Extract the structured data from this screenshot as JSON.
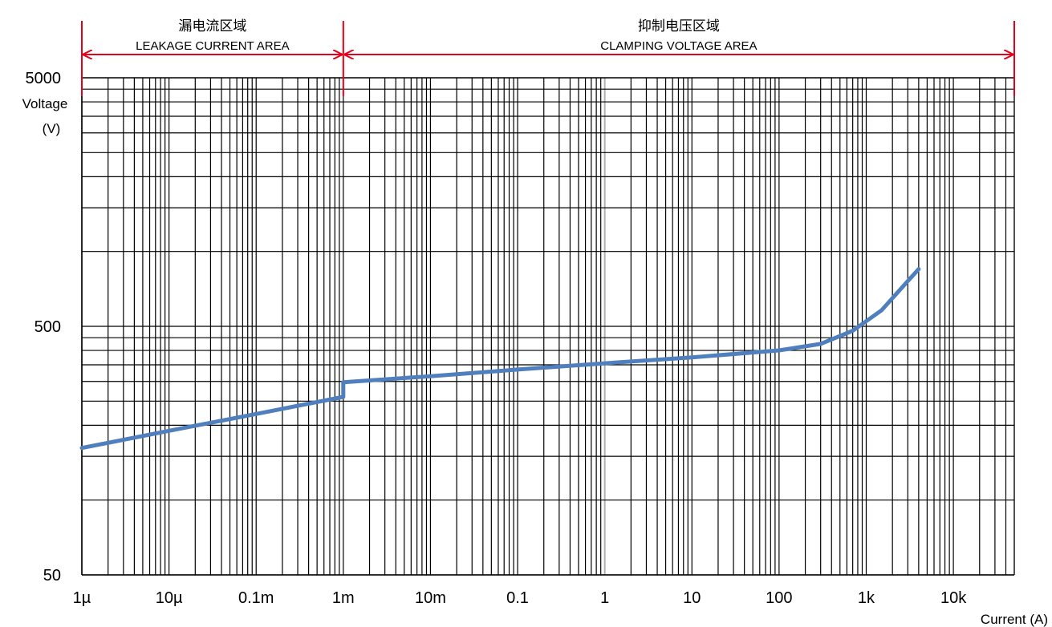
{
  "chart_data": {
    "type": "line",
    "x_scale": "log",
    "y_scale": "log",
    "xlim": [
      "1µ",
      "50k"
    ],
    "ylim": [
      50,
      5000
    ],
    "grid": true,
    "xlabel": "Current (A)",
    "ylabel": "Voltage (V)",
    "ylabel_lines": [
      "Voltage",
      "(V)"
    ],
    "x_ticks": [
      {
        "label": "1µ",
        "value": 1e-06
      },
      {
        "label": "10µ",
        "value": 1e-05
      },
      {
        "label": "0.1m",
        "value": 0.0001
      },
      {
        "label": "1m",
        "value": 0.001
      },
      {
        "label": "10m",
        "value": 0.01
      },
      {
        "label": "0.1",
        "value": 0.1
      },
      {
        "label": "1",
        "value": 1
      },
      {
        "label": "10",
        "value": 10
      },
      {
        "label": "100",
        "value": 100
      },
      {
        "label": "1k",
        "value": 1000
      },
      {
        "label": "10k",
        "value": 10000
      }
    ],
    "y_ticks": [
      {
        "label": "5000",
        "value": 5000
      },
      {
        "label": "500",
        "value": 500
      },
      {
        "label": "50",
        "value": 50
      }
    ],
    "regions": [
      {
        "label_cn": "漏电流区域",
        "label_en": "LEAKAGE CURRENT AREA",
        "x_range": [
          1e-06,
          0.001
        ]
      },
      {
        "label_cn": "抑制电压区域",
        "label_en": "CLAMPING VOLTAGE AREA",
        "x_range": [
          0.001,
          50000
        ]
      }
    ],
    "colors": {
      "series": "#4f7fbd",
      "region_arrow": "#e3001b",
      "grid": "#000000"
    },
    "series": [
      {
        "x": [
          1e-06,
          1e-05,
          0.0001,
          0.001,
          0.001,
          0.01,
          0.1,
          1,
          10,
          100,
          300,
          700,
          1500,
          3000,
          4000
        ],
        "y": [
          162,
          190,
          222,
          260,
          298,
          315,
          335,
          355,
          375,
          400,
          425,
          480,
          580,
          760,
          850
        ]
      }
    ]
  }
}
